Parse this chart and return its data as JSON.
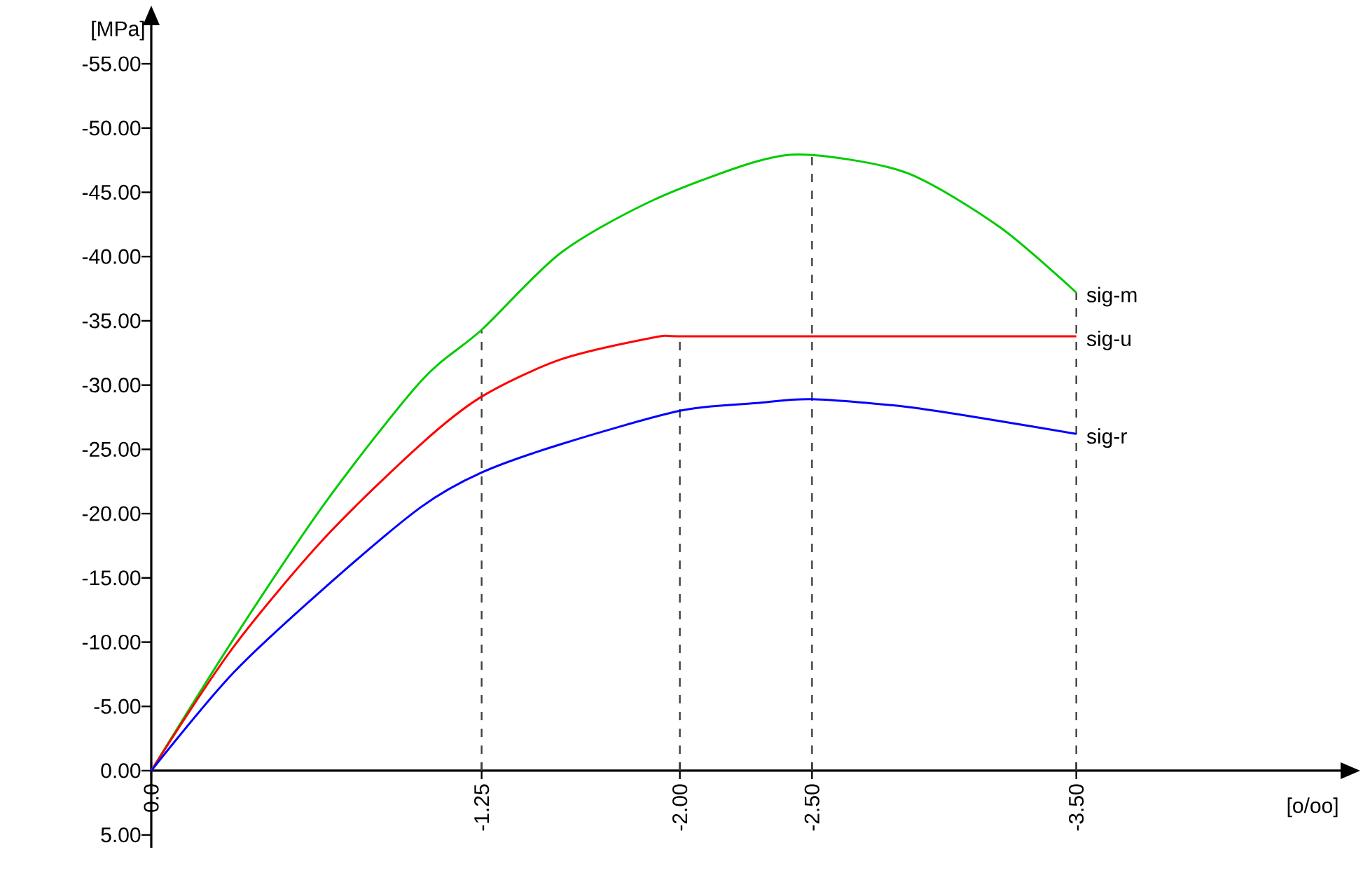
{
  "chart_data": {
    "type": "line",
    "xlabel": "[o/oo]",
    "ylabel": "[MPa]",
    "xlim": [
      0,
      -4.5
    ],
    "ylim": [
      6,
      -58
    ],
    "xticks": [
      {
        "value": 0,
        "label": "0.0"
      },
      {
        "value": -1.25,
        "label": "-1.25"
      },
      {
        "value": -2.0,
        "label": "-2.00"
      },
      {
        "value": -2.5,
        "label": "-2.50"
      },
      {
        "value": -3.5,
        "label": "-3.50"
      }
    ],
    "yticks": [
      {
        "value": 5,
        "label": "5.00"
      },
      {
        "value": 0,
        "label": "0.00"
      },
      {
        "value": -5,
        "label": "-5.00"
      },
      {
        "value": -10,
        "label": "-10.00"
      },
      {
        "value": -15,
        "label": "-15.00"
      },
      {
        "value": -20,
        "label": "-20.00"
      },
      {
        "value": -25,
        "label": "-25.00"
      },
      {
        "value": -30,
        "label": "-30.00"
      },
      {
        "value": -35,
        "label": "-35.00"
      },
      {
        "value": -40,
        "label": "-40.00"
      },
      {
        "value": -45,
        "label": "-45.00"
      },
      {
        "value": -50,
        "label": "-50.00"
      },
      {
        "value": -55,
        "label": "-55.00"
      }
    ],
    "series": [
      {
        "name": "sig-m",
        "color": "#00cc00",
        "x": [
          0,
          -0.31,
          -0.66,
          -1.02,
          -1.25,
          -1.55,
          -1.9,
          -2.29,
          -2.5,
          -2.86,
          -3.21,
          -3.5
        ],
        "values": [
          0,
          -10.2,
          -20.9,
          -30.3,
          -34.3,
          -40.3,
          -44.4,
          -47.4,
          -47.9,
          -46.5,
          -42.3,
          -37.2
        ]
      },
      {
        "name": "sig-u",
        "color": "#ff0000",
        "x": [
          0,
          -0.31,
          -0.66,
          -1.02,
          -1.25,
          -1.55,
          -1.9,
          -2.0,
          -2.5,
          -3.5
        ],
        "values": [
          0,
          -9.6,
          -18.2,
          -25.4,
          -29.1,
          -32.0,
          -33.7,
          -33.8,
          -33.8,
          -33.8
        ]
      },
      {
        "name": "sig-r",
        "color": "#0000ff",
        "x": [
          0,
          -0.31,
          -0.66,
          -1.02,
          -1.25,
          -1.55,
          -2.0,
          -2.29,
          -2.5,
          -2.86,
          -3.21,
          -3.5
        ],
        "values": [
          0,
          -7.6,
          -14.3,
          -20.5,
          -23.2,
          -25.4,
          -28.0,
          -28.6,
          -28.9,
          -28.3,
          -27.2,
          -26.2
        ]
      }
    ],
    "ref_lines": [
      {
        "axis": "x",
        "value": -1.25,
        "color": "#404040",
        "line_style": "dashed"
      },
      {
        "axis": "x",
        "value": -2.0,
        "color": "#404040",
        "line_style": "dashed"
      },
      {
        "axis": "x",
        "value": -2.5,
        "color": "#404040",
        "line_style": "dashed"
      },
      {
        "axis": "x",
        "value": -3.5,
        "color": "#404040",
        "line_style": "dashed"
      }
    ]
  }
}
